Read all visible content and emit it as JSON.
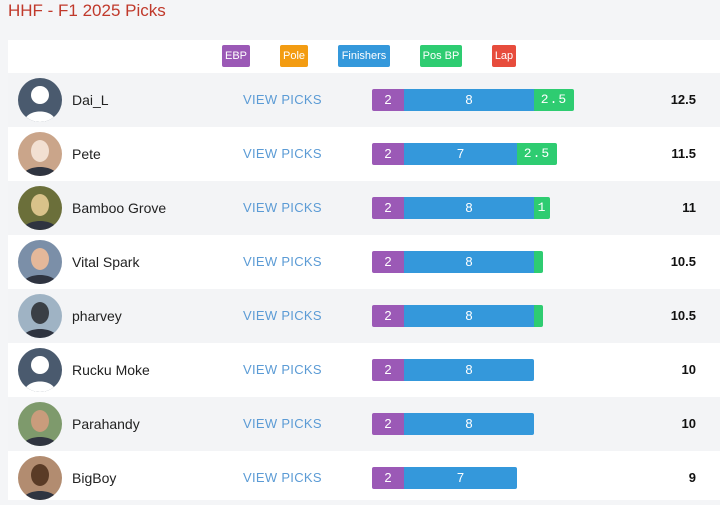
{
  "header": {
    "title": "HHF - F1 2025 Picks"
  },
  "legend": [
    {
      "label": "EBP",
      "color": "#9b59b6"
    },
    {
      "label": "Pole",
      "color": "#f39c12"
    },
    {
      "label": "Finishers",
      "color": "#3498db"
    },
    {
      "label": "Pos BP",
      "color": "#2ecc71"
    },
    {
      "label": "Lap",
      "color": "#e74c3c"
    }
  ],
  "view_picks_label": "VIEW PICKS",
  "rows": [
    {
      "name": "Dai_L",
      "ebp": "2",
      "finishers": "8",
      "pos_bp": "2.5",
      "score": "12.5"
    },
    {
      "name": "Pete",
      "ebp": "2",
      "finishers": "7",
      "pos_bp": "2.5",
      "score": "11.5"
    },
    {
      "name": "Bamboo Grove",
      "ebp": "2",
      "finishers": "8",
      "pos_bp": "1",
      "score": "11"
    },
    {
      "name": "Vital Spark",
      "ebp": "2",
      "finishers": "8",
      "pos_bp": "",
      "score": "10.5"
    },
    {
      "name": "pharvey",
      "ebp": "2",
      "finishers": "8",
      "pos_bp": "",
      "score": "10.5"
    },
    {
      "name": "Rucku Moke",
      "ebp": "2",
      "finishers": "8",
      "pos_bp": "",
      "score": "10"
    },
    {
      "name": "Parahandy",
      "ebp": "2",
      "finishers": "8",
      "pos_bp": "",
      "score": "10"
    },
    {
      "name": "BigBoy",
      "ebp": "2",
      "finishers": "7",
      "pos_bp": "",
      "score": "9"
    }
  ]
}
